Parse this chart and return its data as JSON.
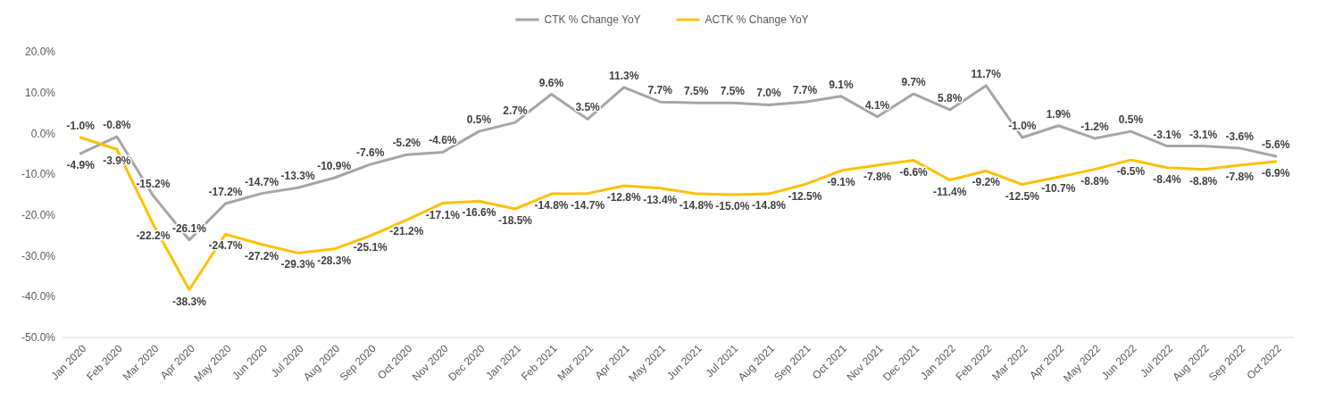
{
  "chart_data": {
    "type": "line",
    "legend": "top",
    "grid": false,
    "marker": "none",
    "line_style": "solid",
    "categories": [
      "Jan 2020",
      "Feb 2020",
      "Mar 2020",
      "Apr 2020",
      "May 2020",
      "Jun 2020",
      "Jul 2020",
      "Aug 2020",
      "Sep 2020",
      "Oct 2020",
      "Nov 2020",
      "Dec 2020",
      "Jan 2021",
      "Feb 2021",
      "Mar 2021",
      "Apr 2021",
      "May 2021",
      "Jun 2021",
      "Jul 2021",
      "Aug 2021",
      "Sep 2021",
      "Oct 2021",
      "Nov 2021",
      "Dec 2021",
      "Jan 2022",
      "Feb 2022",
      "Mar 2022",
      "Apr 2022",
      "May 2022",
      "Jun 2022",
      "Jul 2022",
      "Aug 2022",
      "Sep 2022",
      "Oct 2022"
    ],
    "ylim": [
      -50,
      20
    ],
    "yticks": [
      {
        "value": -50,
        "label": "-50.0%"
      },
      {
        "value": -40,
        "label": "-40.0%"
      },
      {
        "value": -30,
        "label": "-30.0%"
      },
      {
        "value": -20,
        "label": "-20.0%"
      },
      {
        "value": -10,
        "label": "-10.0%"
      },
      {
        "value": 0,
        "label": "0.0%"
      },
      {
        "value": 10,
        "label": "10.0%"
      },
      {
        "value": 20,
        "label": "20.0%"
      }
    ],
    "series": [
      {
        "name": "CTK % Change YoY",
        "color": "#a5a5a5",
        "values": [
          -4.9,
          -0.8,
          -15.2,
          -26.1,
          -17.2,
          -14.7,
          -13.3,
          -10.9,
          -7.6,
          -5.2,
          -4.6,
          0.5,
          2.7,
          9.6,
          3.5,
          11.3,
          7.7,
          7.5,
          7.5,
          7.0,
          7.7,
          9.1,
          4.1,
          9.7,
          5.8,
          11.7,
          -1.0,
          1.9,
          -1.2,
          0.5,
          -3.1,
          -3.1,
          -3.6,
          -5.6
        ],
        "value_labels": [
          "-4.9%",
          "-0.8%",
          "-15.2%",
          "-26.1%",
          "-17.2%",
          "-14.7%",
          "-13.3%",
          "-10.9%",
          "-7.6%",
          "-5.2%",
          "-4.6%",
          "0.5%",
          "2.7%",
          "9.6%",
          "3.5%",
          "11.3%",
          "7.7%",
          "7.5%",
          "7.5%",
          "7.0%",
          "7.7%",
          "9.1%",
          "4.1%",
          "9.7%",
          "5.8%",
          "11.7%",
          "-1.0%",
          "1.9%",
          "-1.2%",
          "0.5%",
          "-3.1%",
          "-3.1%",
          "-3.6%",
          "-5.6%"
        ]
      },
      {
        "name": "ACTK % Change YoY",
        "color": "#ffc000",
        "values": [
          -1.0,
          -3.9,
          -22.2,
          -38.3,
          -24.7,
          -27.2,
          -29.3,
          -28.3,
          -25.1,
          -21.2,
          -17.1,
          -16.6,
          -18.5,
          -14.8,
          -14.7,
          -12.8,
          -13.4,
          -14.8,
          -15.0,
          -14.8,
          -12.5,
          -9.1,
          -7.8,
          -6.6,
          -11.4,
          -9.2,
          -12.5,
          -10.7,
          -8.8,
          -6.5,
          -8.4,
          -8.8,
          -7.8,
          -6.9
        ],
        "value_labels": [
          "-1.0%",
          "-3.9%",
          "-22.2%",
          "-38.3%",
          "-24.7%",
          "-27.2%",
          "-29.3%",
          "-28.3%",
          "-25.1%",
          "-21.2%",
          "-17.1%",
          "-16.6%",
          "-18.5%",
          "-14.8%",
          "-14.7%",
          "-12.8%",
          "-13.4%",
          "-14.8%",
          "-15.0%",
          "-14.8%",
          "-12.5%",
          "-9.1%",
          "-7.8%",
          "-6.6%",
          "-11.4%",
          "-9.2%",
          "-12.5%",
          "-10.7%",
          "-8.8%",
          "-6.5%",
          "-8.4%",
          "-8.8%",
          "-7.8%",
          "-6.9%"
        ]
      }
    ]
  }
}
